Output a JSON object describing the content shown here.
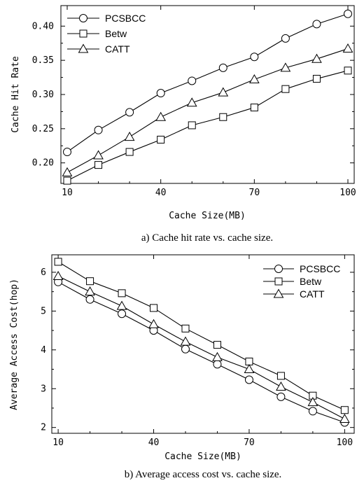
{
  "chart_data": [
    {
      "type": "line",
      "caption": "a) Cache hit rate vs. cache size.",
      "xlabel": "Cache Size(MB)",
      "ylabel": "Cache Hit Rate",
      "xlim": [
        10,
        100
      ],
      "ylim": [
        0.17,
        0.43
      ],
      "xticks": [
        10,
        40,
        70,
        100
      ],
      "yticks": [
        0.2,
        0.25,
        0.3,
        0.35,
        0.4
      ],
      "ytick_labels": [
        "0.20",
        "0.25",
        "0.30",
        "0.35",
        "0.40"
      ],
      "legend_position": "top-left",
      "x": [
        10,
        20,
        30,
        40,
        50,
        60,
        70,
        80,
        90,
        100
      ],
      "series": [
        {
          "name": "PCSBCC",
          "marker": "circle",
          "values": [
            0.216,
            0.248,
            0.274,
            0.302,
            0.32,
            0.339,
            0.355,
            0.382,
            0.403,
            0.418
          ]
        },
        {
          "name": "Betw",
          "marker": "square",
          "values": [
            0.174,
            0.197,
            0.216,
            0.234,
            0.255,
            0.267,
            0.281,
            0.308,
            0.323,
            0.335
          ]
        },
        {
          "name": "CATT",
          "marker": "triangle",
          "values": [
            0.186,
            0.211,
            0.238,
            0.267,
            0.288,
            0.303,
            0.322,
            0.339,
            0.352,
            0.367
          ]
        }
      ]
    },
    {
      "type": "line",
      "caption": "b) Average access cost vs. cache size.",
      "xlabel": "Cache Size(MB)",
      "ylabel": "Average Access Cost(hop)",
      "xlim": [
        8,
        103
      ],
      "ylim": [
        1.85,
        6.45
      ],
      "xticks": [
        10,
        40,
        70,
        100
      ],
      "yticks": [
        2,
        3,
        4,
        5,
        6
      ],
      "ytick_labels": [
        "2",
        "3",
        "4",
        "5",
        "6"
      ],
      "legend_position": "top-right",
      "x": [
        10,
        20,
        30,
        40,
        50,
        60,
        70,
        80,
        90,
        100
      ],
      "series": [
        {
          "name": "PCSBCC",
          "marker": "circle",
          "values": [
            5.75,
            5.3,
            4.93,
            4.5,
            4.02,
            3.63,
            3.23,
            2.79,
            2.42,
            2.13
          ]
        },
        {
          "name": "Betw",
          "marker": "square",
          "values": [
            6.27,
            5.77,
            5.46,
            5.08,
            4.55,
            4.13,
            3.7,
            3.33,
            2.82,
            2.45
          ]
        },
        {
          "name": "CATT",
          "marker": "triangle",
          "values": [
            5.9,
            5.5,
            5.13,
            4.66,
            4.21,
            3.81,
            3.5,
            3.05,
            2.65,
            2.22
          ]
        }
      ]
    }
  ]
}
